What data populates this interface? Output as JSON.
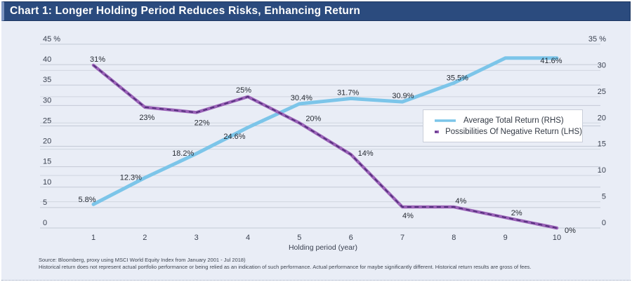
{
  "header": {
    "title": "Chart 1: Longer Holding Period Reduces Risks, Enhancing Return"
  },
  "chart_data": {
    "type": "line",
    "title": "Chart 1: Longer Holding Period Reduces Risks, Enhancing Return",
    "xlabel": "Holding period (year)",
    "categories": [
      "1",
      "2",
      "3",
      "4",
      "5",
      "6",
      "7",
      "8",
      "9",
      "10"
    ],
    "left_axis": {
      "min": 0,
      "max": 45,
      "step": 5,
      "tick_labels": [
        "0",
        "5",
        "10",
        "15",
        "20",
        "25",
        "30",
        "35",
        "40",
        "45 %"
      ]
    },
    "right_axis": {
      "min": 0,
      "max": 35,
      "step": 5,
      "tick_labels": [
        "0",
        "5",
        "10",
        "15",
        "20",
        "25",
        "30",
        "35 %"
      ]
    },
    "grid": "on",
    "legend_position": "middle-right",
    "series": [
      {
        "name": "Average Total Return (RHS)",
        "axis": "RHS",
        "color": "#7cc5e9",
        "values": [
          5.8,
          12.3,
          18.2,
          24.6,
          30.4,
          31.7,
          30.9,
          35.5,
          41.6,
          41.6
        ],
        "point_labels": [
          "5.8%",
          "12.3%",
          "18.2%",
          "24.6%",
          "30.4%",
          "31.7%",
          "30.9%",
          "35.5%",
          "",
          "41.6%"
        ]
      },
      {
        "name": "Possibilities Of Negative Return (LHS)",
        "axis": "LHS",
        "color": "#9b63b8",
        "dash_color": "#4f2d78",
        "values": [
          31,
          23,
          22,
          25,
          20,
          14,
          4,
          4,
          2,
          0
        ],
        "point_labels": [
          "31%",
          "23%",
          "22%",
          "25%",
          "20%",
          "14%",
          "4%",
          "4%",
          "2%",
          "0%"
        ]
      }
    ]
  },
  "footer": {
    "line1": "Source: Bloomberg, proxy using MSCI World Equity Index from January 2001 - Jul 2018)",
    "line2": "Historical return does not represent actual portfolio performance or being relied as an indication of such performance. Actual performance for maybe significantly different. Historical return results are gross of fees."
  },
  "colors": {
    "titlebar_bg": "#2b4b7e",
    "panel_bg": "#e9edf6",
    "gridline": "#c4cad6",
    "blue_line": "#7cc5e9",
    "purple_line": "#9b63b8",
    "purple_dash": "#4f2d78"
  }
}
